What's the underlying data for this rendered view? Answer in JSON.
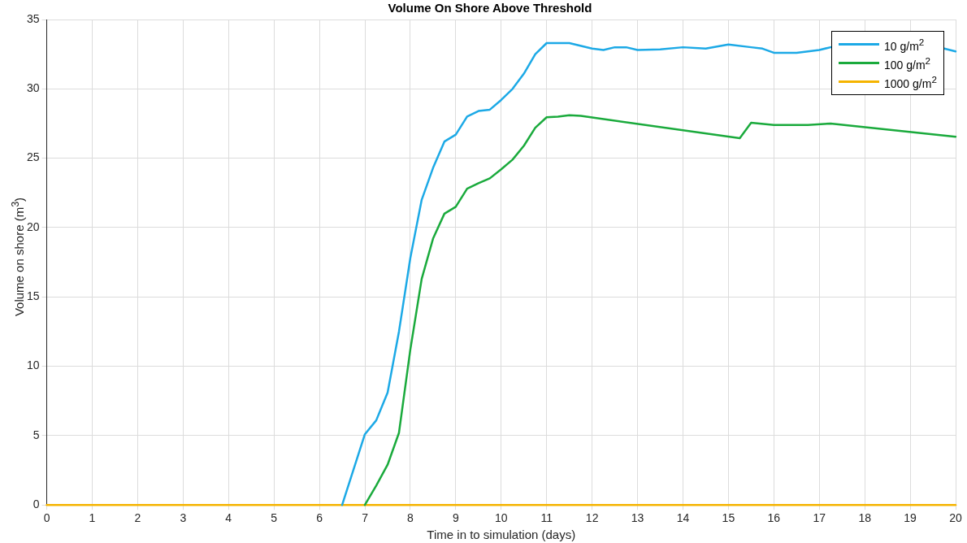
{
  "chart_data": {
    "type": "line",
    "title": "Volume On Shore Above Threshold",
    "xlabel": "Time in to simulation (days)",
    "ylabel": "Volume on shore (m$^{3}$)",
    "xlim": [
      0,
      20
    ],
    "xticks": [
      0,
      1,
      2,
      3,
      4,
      5,
      6,
      7,
      8,
      9,
      10,
      11,
      12,
      13,
      14,
      15,
      16,
      17,
      18,
      19,
      20
    ],
    "ylim": [
      0,
      35
    ],
    "yticks": [
      0,
      5,
      10,
      15,
      20,
      25,
      30,
      35
    ],
    "grid": true,
    "legend": "top right",
    "marker": "none",
    "line_style": "solid",
    "series": [
      {
        "name": "10 g/m$^{2}$",
        "color": "#1ca9e6",
        "x": [
          6.5,
          7,
          7.25,
          7.5,
          7.75,
          8,
          8.25,
          8.5,
          8.75,
          9,
          9.25,
          9.5,
          9.75,
          10,
          10.25,
          10.5,
          10.75,
          11,
          11.5,
          12,
          12.25,
          12.5,
          12.75,
          13,
          13.5,
          14,
          14.5,
          15,
          15.5,
          15.75,
          16,
          16.5,
          17,
          17.25,
          17.5,
          18,
          18.5,
          19,
          19.5,
          19.75,
          20
        ],
        "values": [
          0,
          5.1,
          6.1,
          8.1,
          12.5,
          17.8,
          22,
          24.3,
          26.2,
          26.7,
          28,
          28.4,
          28.5,
          29.2,
          30,
          31.1,
          32.5,
          33.3,
          33.3,
          32.9,
          32.8,
          33,
          33,
          32.8,
          32.85,
          33,
          32.9,
          33.2,
          33,
          32.9,
          32.6,
          32.6,
          32.8,
          33,
          null,
          null,
          null,
          null,
          null,
          32.9,
          32.7
        ]
      },
      {
        "name": "100 g/m$^{2}$",
        "color": "#1aaa3c",
        "x": [
          7,
          7.25,
          7.5,
          7.75,
          8,
          8.25,
          8.5,
          8.75,
          9,
          9.25,
          9.5,
          9.75,
          10,
          10.25,
          10.5,
          10.75,
          11,
          11.25,
          11.5,
          11.75,
          15.25,
          15.5,
          16,
          16.75,
          17.25,
          20
        ],
        "values": [
          0,
          1.4,
          2.9,
          5.2,
          11.2,
          16.3,
          19.2,
          21,
          21.5,
          22.8,
          23.2,
          23.55,
          24.2,
          24.9,
          25.9,
          27.2,
          27.95,
          28,
          28.1,
          28.05,
          26.45,
          27.55,
          27.4,
          27.4,
          27.5,
          26.55
        ]
      },
      {
        "name": "1000 g/m$^{2}$",
        "color": "#f5b400",
        "x": [
          0,
          20
        ],
        "values": [
          0,
          0
        ]
      }
    ]
  }
}
